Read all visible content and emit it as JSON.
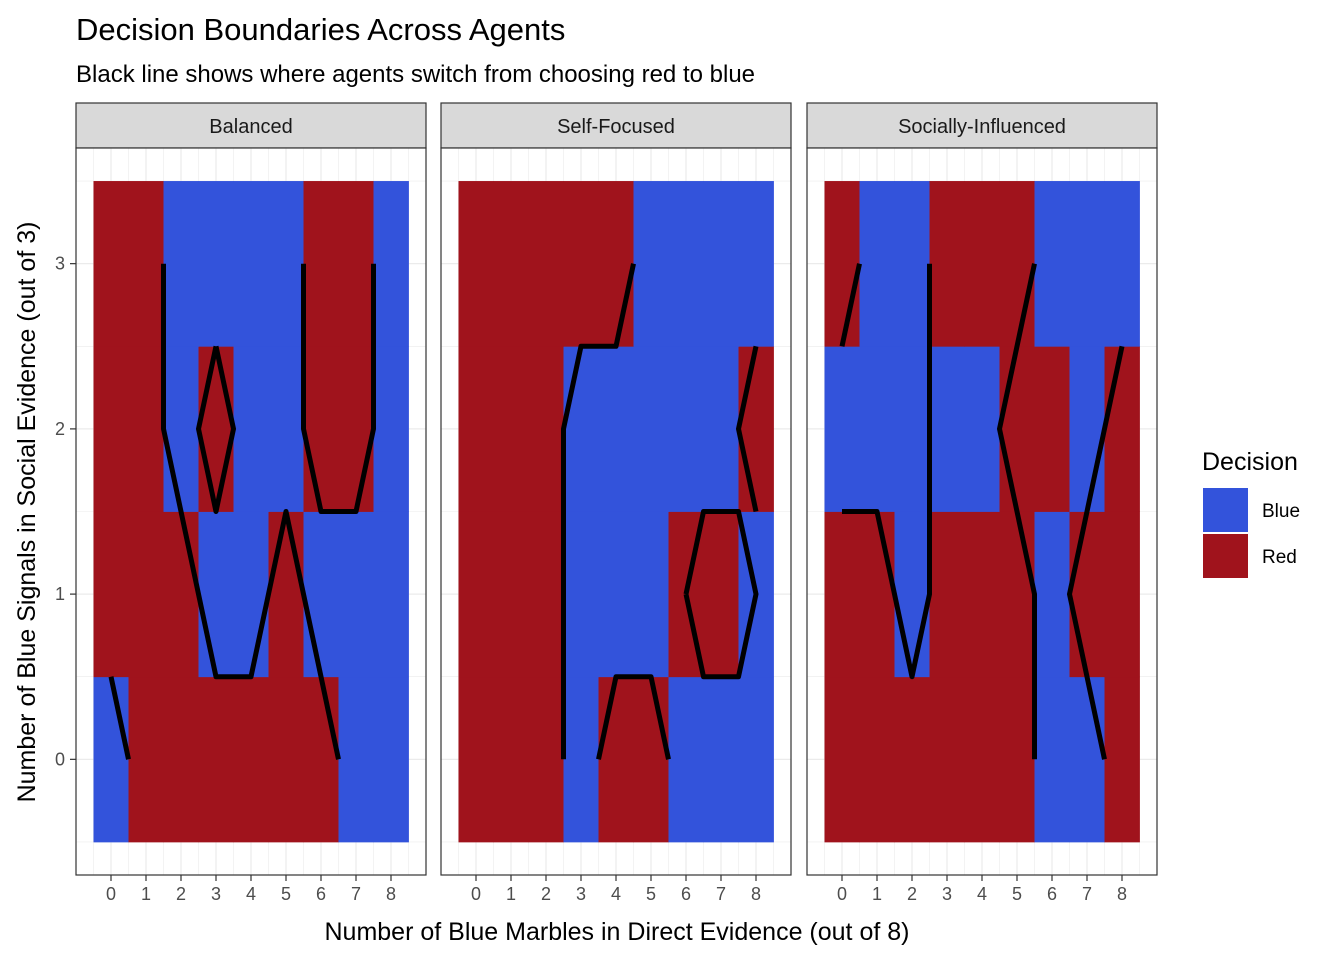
{
  "chart_data": {
    "type": "heatmap",
    "title": "Decision Boundaries Across Agents",
    "subtitle": "Black line shows where agents switch from choosing red to blue",
    "xlabel": "Number of Blue Marbles in Direct Evidence (out of 8)",
    "ylabel": "Number of Blue Signals in Social Evidence (out of 3)",
    "x_ticks": [
      "0",
      "1",
      "2",
      "3",
      "4",
      "5",
      "6",
      "7",
      "8"
    ],
    "y_ticks": [
      "0",
      "1",
      "2",
      "3"
    ],
    "xlim": [
      -0.5,
      8.5
    ],
    "ylim": [
      -0.5,
      3.5
    ],
    "legend": {
      "title": "Decision",
      "placement": "right",
      "items": [
        {
          "label": "Blue",
          "color": "#3353DB"
        },
        {
          "label": "Red",
          "color": "#A0131C"
        }
      ]
    },
    "colors": {
      "Blue": "#3353DB",
      "Red": "#A0131C",
      "boundary": "#000000"
    },
    "panels": [
      {
        "name": "Balanced",
        "grid_note": "rows indexed by social evidence 0..3, columns by direct evidence 0..8; B=Blue, R=Red",
        "cells": [
          [
            "B",
            "R",
            "R",
            "R",
            "R",
            "R",
            "R",
            "B",
            "B"
          ],
          [
            "R",
            "R",
            "R",
            "B",
            "B",
            "R",
            "B",
            "B",
            "B"
          ],
          [
            "R",
            "R",
            "B",
            "R",
            "B",
            "B",
            "R",
            "R",
            "B"
          ],
          [
            "R",
            "R",
            "B",
            "B",
            "B",
            "B",
            "R",
            "R",
            "B"
          ]
        ],
        "boundary_lines": [
          [
            [
              0,
              0.5
            ],
            [
              0.5,
              0
            ]
          ],
          [
            [
              1.5,
              3
            ],
            [
              1.5,
              2
            ],
            [
              3,
              0.5
            ],
            [
              4,
              0.5
            ],
            [
              5,
              1.5
            ],
            [
              6.5,
              0
            ]
          ],
          [
            [
              3,
              2.5
            ],
            [
              3.5,
              2
            ],
            [
              3,
              1.5
            ],
            [
              2.5,
              2
            ],
            [
              3,
              2.5
            ]
          ],
          [
            [
              5.5,
              3
            ],
            [
              5.5,
              2
            ],
            [
              6,
              1.5
            ],
            [
              7,
              1.5
            ],
            [
              7.5,
              2
            ],
            [
              7.5,
              3
            ]
          ]
        ]
      },
      {
        "name": "Self-Focused",
        "grid_note": "rows indexed by social evidence 0..3, columns by direct evidence 0..8; B=Blue, R=Red",
        "cells": [
          [
            "R",
            "R",
            "R",
            "B",
            "R",
            "R",
            "B",
            "B",
            "B"
          ],
          [
            "R",
            "R",
            "R",
            "B",
            "B",
            "B",
            "R",
            "R",
            "B"
          ],
          [
            "R",
            "R",
            "R",
            "B",
            "B",
            "B",
            "B",
            "B",
            "R"
          ],
          [
            "R",
            "R",
            "R",
            "R",
            "R",
            "B",
            "B",
            "B",
            "B"
          ]
        ],
        "boundary_lines": [
          [
            [
              2.5,
              0
            ],
            [
              2.5,
              2
            ],
            [
              3,
              2.5
            ],
            [
              4,
              2.5
            ],
            [
              4.5,
              3
            ]
          ],
          [
            [
              3.5,
              0
            ],
            [
              4,
              0.5
            ],
            [
              5,
              0.5
            ],
            [
              5.5,
              0
            ]
          ],
          [
            [
              6,
              1
            ],
            [
              6.5,
              1.5
            ],
            [
              7.5,
              1.5
            ],
            [
              8,
              1
            ],
            [
              7.5,
              0.5
            ],
            [
              6.5,
              0.5
            ],
            [
              6,
              1
            ]
          ],
          [
            [
              8,
              2.5
            ],
            [
              7.5,
              2
            ],
            [
              8,
              1.5
            ]
          ]
        ]
      },
      {
        "name": "Socially-Influenced",
        "grid_note": "rows indexed by social evidence 0..3, columns by direct evidence 0..8; B=Blue, R=Red",
        "cells": [
          [
            "R",
            "R",
            "R",
            "R",
            "R",
            "R",
            "B",
            "B",
            "R"
          ],
          [
            "R",
            "R",
            "B",
            "R",
            "R",
            "R",
            "B",
            "R",
            "R"
          ],
          [
            "B",
            "B",
            "B",
            "B",
            "B",
            "R",
            "R",
            "B",
            "R"
          ],
          [
            "R",
            "B",
            "B",
            "R",
            "R",
            "R",
            "B",
            "B",
            "B"
          ]
        ],
        "boundary_lines": [
          [
            [
              0,
              2.5
            ],
            [
              0.5,
              3
            ]
          ],
          [
            [
              0,
              1.5
            ],
            [
              1,
              1.5
            ],
            [
              2,
              0.5
            ],
            [
              2.5,
              1
            ],
            [
              2.5,
              3
            ]
          ],
          [
            [
              5.5,
              3
            ],
            [
              4.5,
              2
            ],
            [
              5.5,
              1
            ],
            [
              5.5,
              0
            ]
          ],
          [
            [
              8,
              2.5
            ],
            [
              6.5,
              1
            ],
            [
              7.5,
              0
            ]
          ]
        ]
      }
    ]
  }
}
